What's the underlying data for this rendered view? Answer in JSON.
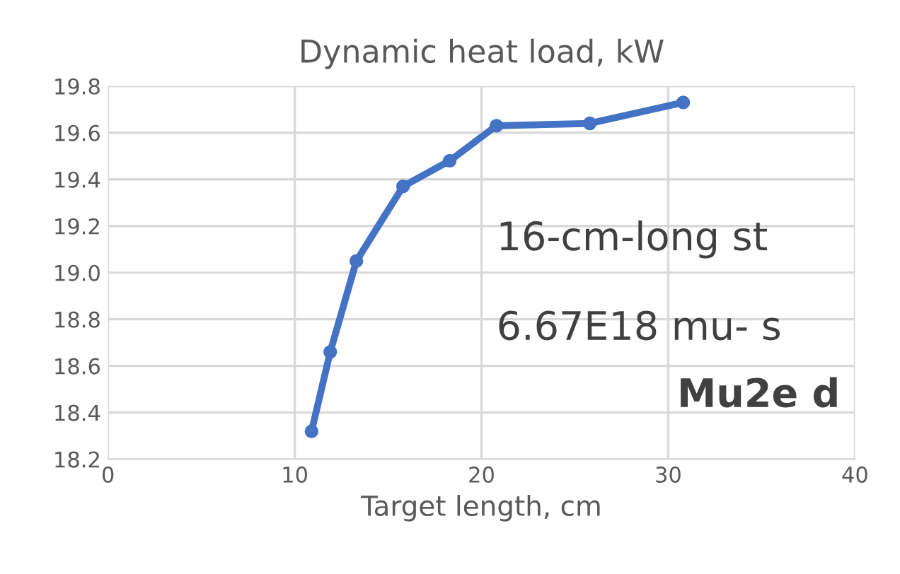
{
  "chart_data": {
    "type": "line",
    "title": "Dynamic heat load, kW",
    "xlabel": "Target length, cm",
    "x": [
      10.9,
      11.9,
      13.3,
      15.8,
      18.3,
      20.8,
      25.8,
      30.8
    ],
    "series": [
      {
        "color": "#4472c4",
        "values": [
          18.32,
          18.66,
          19.05,
          19.37,
          19.48,
          19.63,
          19.64,
          19.73
        ]
      }
    ],
    "xlim": [
      0,
      40
    ],
    "xticks": [
      0,
      10,
      20,
      30,
      40
    ],
    "ylim": [
      18.2,
      19.8
    ],
    "yticks": [
      {
        "value": 18.2,
        "label": "18.2"
      },
      {
        "value": 18.4,
        "label": "18.4"
      },
      {
        "value": 18.6,
        "label": "18.6"
      },
      {
        "value": 18.8,
        "label": "18.8"
      },
      {
        "value": 19.0,
        "label": "19.0"
      },
      {
        "value": 19.2,
        "label": "19.2"
      },
      {
        "value": 19.4,
        "label": "19.4"
      },
      {
        "value": 19.6,
        "label": "19.6"
      },
      {
        "value": 19.8,
        "label": "19.8"
      }
    ],
    "grid": true,
    "marker": "circle",
    "line_style": "solid",
    "annotations": [
      "16-cm-long st",
      "6.67E18 mu- s",
      "Mu2e d"
    ]
  }
}
